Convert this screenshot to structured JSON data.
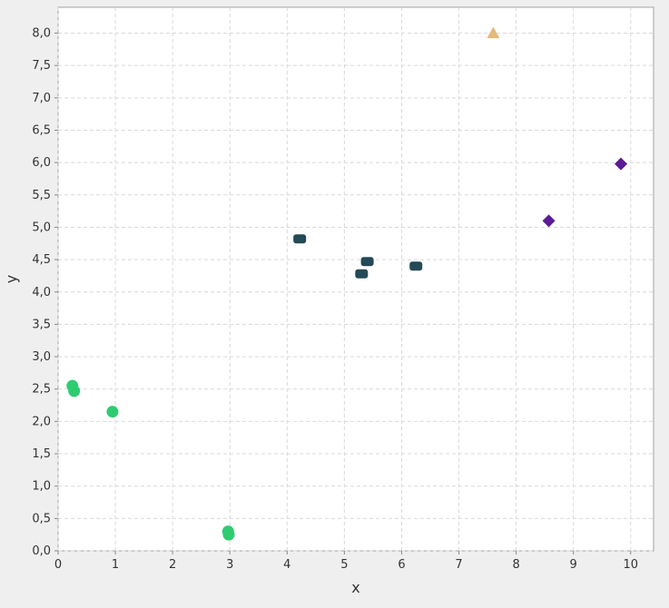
{
  "chart_data": {
    "type": "scatter",
    "title": "",
    "xlabel": "x",
    "ylabel": "y",
    "xlim": [
      0,
      10.4
    ],
    "ylim": [
      0,
      8.4
    ],
    "x_ticks": [
      0,
      1,
      2,
      3,
      4,
      5,
      6,
      7,
      8,
      9,
      10
    ],
    "x_tick_labels": [
      "0",
      "1",
      "2",
      "3",
      "4",
      "5",
      "6",
      "7",
      "8",
      "9",
      "10"
    ],
    "y_ticks": [
      0,
      0.5,
      1,
      1.5,
      2,
      2.5,
      3,
      3.5,
      4,
      4.5,
      5,
      5.5,
      6,
      6.5,
      7,
      7.5,
      8
    ],
    "y_tick_labels": [
      "0,0",
      "0,5",
      "1,0",
      "1,5",
      "2,0",
      "2,5",
      "3,0",
      "3,5",
      "4,0",
      "4,5",
      "5,0",
      "5,5",
      "6,0",
      "6,5",
      "7,0",
      "7,5",
      "8,0"
    ],
    "grid": true,
    "legend": "none",
    "series": [
      {
        "marker": "circle",
        "color": "#2ecc71",
        "points": [
          {
            "x": 0.25,
            "y": 2.55
          },
          {
            "x": 0.28,
            "y": 2.47
          },
          {
            "x": 0.95,
            "y": 2.15
          },
          {
            "x": 2.97,
            "y": 0.3
          },
          {
            "x": 2.98,
            "y": 0.25
          }
        ]
      },
      {
        "marker": "rect",
        "color": "#234a56",
        "points": [
          {
            "x": 4.22,
            "y": 4.82
          },
          {
            "x": 5.4,
            "y": 4.47
          },
          {
            "x": 5.3,
            "y": 4.28
          },
          {
            "x": 6.25,
            "y": 4.4
          }
        ]
      },
      {
        "marker": "diamond",
        "color": "#5b1a96",
        "points": [
          {
            "x": 8.57,
            "y": 5.1
          },
          {
            "x": 9.83,
            "y": 5.98
          }
        ]
      },
      {
        "marker": "triangle",
        "color": "#e6b97a",
        "points": [
          {
            "x": 7.6,
            "y": 8.0
          }
        ]
      }
    ]
  }
}
